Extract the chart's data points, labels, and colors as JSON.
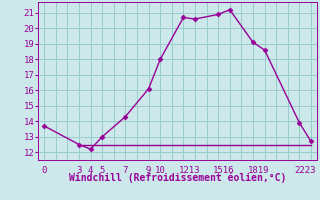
{
  "xlabel": "Windchill (Refroidissement éolien,°C)",
  "bg_color": "#cce8ea",
  "grid_color": "#99cccc",
  "line_color": "#990099",
  "line1_x": [
    0,
    3,
    4,
    5,
    7,
    9,
    10,
    12,
    13,
    15,
    16,
    18,
    19,
    22,
    23
  ],
  "line1_y": [
    13.7,
    12.5,
    12.2,
    13.0,
    14.3,
    16.1,
    18.0,
    20.7,
    20.6,
    20.9,
    21.2,
    19.1,
    18.6,
    13.9,
    12.7
  ],
  "line2_x": [
    3,
    23
  ],
  "line2_y": [
    12.5,
    12.5
  ],
  "yticks": [
    12,
    13,
    14,
    15,
    16,
    17,
    18,
    19,
    20,
    21
  ],
  "xlim": [
    -0.5,
    23.5
  ],
  "ylim": [
    11.5,
    21.7
  ],
  "marker": "D",
  "markersize": 2.5,
  "linewidth": 1.0,
  "fontsize_ticks": 6.5,
  "fontsize_xlabel": 7.0
}
